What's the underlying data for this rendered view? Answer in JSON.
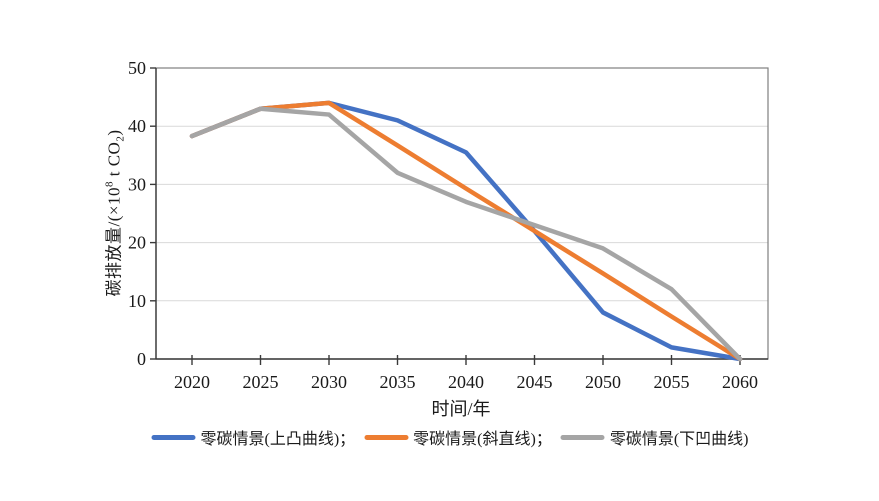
{
  "chart_data": {
    "type": "line",
    "title": "",
    "xlabel": "时间/年",
    "ylabel_text": "碳排放量/(×10⁸ t CO₂)",
    "ylabel_parts": {
      "prefix": "碳排放量/(×10",
      "sup": "8",
      "mid": " t CO",
      "sub": "2",
      "suffix": ")"
    },
    "x": [
      2020,
      2025,
      2030,
      2035,
      2040,
      2045,
      2050,
      2055,
      2060
    ],
    "x_tick_labels": [
      "2020",
      "2025",
      "2030",
      "2035",
      "2040",
      "2045",
      "2050",
      "2055",
      "2060"
    ],
    "y_ticks": [
      0,
      10,
      20,
      30,
      40,
      50
    ],
    "ylim": [
      0,
      50
    ],
    "grid": "horizontal-light",
    "legend_position": "bottom-center",
    "series": [
      {
        "name": "零碳情景(上凸曲线)",
        "legend_label": "零碳情景(上凸曲线)；",
        "color": "#4472C4",
        "values": [
          38.3,
          43,
          44,
          41,
          35.5,
          22,
          8,
          2,
          0
        ]
      },
      {
        "name": "零碳情景(斜直线)",
        "legend_label": "零碳情景(斜直线)；",
        "color": "#ED7D31",
        "values": [
          38.3,
          43,
          44,
          36.7,
          29.3,
          22,
          14.7,
          7.3,
          0
        ]
      },
      {
        "name": "零碳情景(下凹曲线)",
        "legend_label": "零碳情景(下凹曲线)",
        "color": "#A5A5A5",
        "values": [
          38.3,
          43,
          42,
          32,
          27,
          23,
          19,
          12,
          0
        ]
      }
    ],
    "colors": {
      "plot_border": "#7f7f7f",
      "axis_line": "#3a3a3a",
      "gridline": "#d9d9d9",
      "tick_label": "#1a1a1a",
      "background": "#ffffff"
    }
  }
}
